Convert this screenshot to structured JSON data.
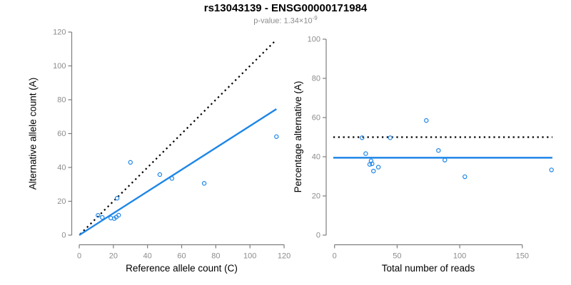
{
  "page": {
    "title": "rs13043139 - ENSG00000171984",
    "subtitle": {
      "prefix": "p-value: ",
      "mantissa": "1.34×10",
      "exponent": "-9"
    }
  },
  "colors": {
    "accent_blue": "#1E86E8",
    "axis_gray": "#7E7E7E",
    "tick_label_gray": "#8C8C8C",
    "label_black": "#000000",
    "background": "#FFFFFF"
  },
  "chart_data": [
    {
      "type": "scatter",
      "panel": "allele-counts",
      "xlabel": "Reference allele count (C)",
      "ylabel": "Alternative allele count (A)",
      "xlim": [
        0,
        120
      ],
      "ylim": [
        0,
        120
      ],
      "xticks": [
        0,
        20,
        40,
        60,
        80,
        100,
        120
      ],
      "yticks": [
        0,
        20,
        40,
        60,
        80,
        100,
        120
      ],
      "grid": false,
      "point_style": {
        "shape": "open-circle",
        "color": "#1E86E8"
      },
      "points": [
        [
          11,
          11.7
        ],
        [
          13.5,
          10.5
        ],
        [
          18.5,
          10.1
        ],
        [
          20.5,
          9.8
        ],
        [
          21.7,
          10.7
        ],
        [
          23.1,
          11.8
        ],
        [
          22.2,
          21.8
        ],
        [
          30,
          43
        ],
        [
          47.2,
          35.8
        ],
        [
          54.3,
          33.5
        ],
        [
          73.2,
          30.6
        ],
        [
          115.5,
          58.2
        ]
      ],
      "lines": [
        {
          "name": "identity-line",
          "style": "dotted",
          "color": "#000000",
          "from": [
            0.5,
            0.5
          ],
          "to": [
            115.5,
            115.5
          ]
        },
        {
          "name": "regression-line",
          "style": "solid",
          "color": "#1E86E8",
          "from": [
            0,
            0
          ],
          "to": [
            115.5,
            74.5
          ]
        }
      ]
    },
    {
      "type": "scatter",
      "panel": "percentage-alternative",
      "xlabel": "Total number of reads",
      "ylabel": "Percentage alternative (A)",
      "xlim": [
        0,
        175
      ],
      "ylim": [
        0,
        100
      ],
      "xticks": [
        0,
        50,
        100,
        150
      ],
      "yticks": [
        0,
        20,
        40,
        60,
        80,
        100
      ],
      "grid": false,
      "point_style": {
        "shape": "open-circle",
        "color": "#1E86E8"
      },
      "points": [
        [
          22,
          49.7
        ],
        [
          44.5,
          49.7
        ],
        [
          73.3,
          58.5
        ],
        [
          24.9,
          41.6
        ],
        [
          29.2,
          37.9
        ],
        [
          28.1,
          36.1
        ],
        [
          30,
          36.4
        ],
        [
          35,
          34.7
        ],
        [
          31.1,
          32.7
        ],
        [
          83,
          43.2
        ],
        [
          88.1,
          38.3
        ],
        [
          104.1,
          29.8
        ],
        [
          173.3,
          33.3
        ]
      ],
      "lines": [
        {
          "name": "fifty-percent-line",
          "style": "dotted",
          "color": "#000000",
          "from": [
            -1,
            50
          ],
          "to": [
            174,
            50
          ]
        },
        {
          "name": "mean-percentage-line",
          "style": "solid",
          "color": "#1E86E8",
          "from": [
            -1,
            39.5
          ],
          "to": [
            174,
            39.5
          ]
        }
      ]
    }
  ]
}
